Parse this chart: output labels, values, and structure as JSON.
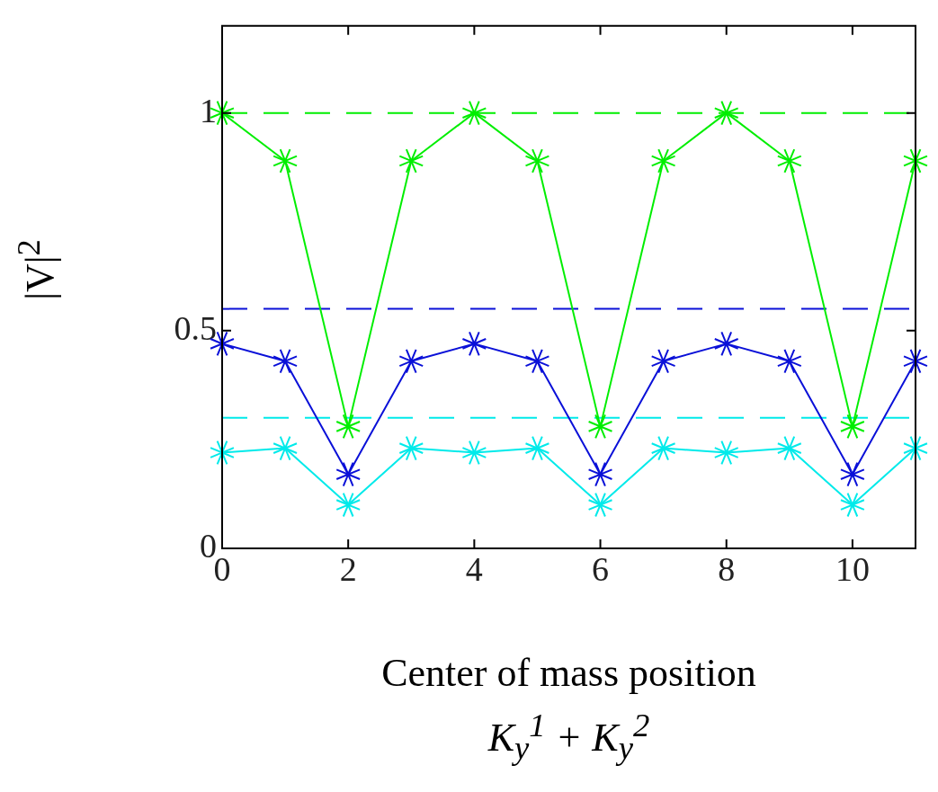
{
  "chart_data": {
    "type": "line",
    "xlabel": "Center of mass position\nK$_{y}$$^{1}$ + K$_{y}$$^{2}$",
    "ylabel": "|V|$^{2}$",
    "x": [
      0,
      1,
      2,
      3,
      4,
      5,
      6,
      7,
      8,
      9,
      10,
      11
    ],
    "series": [
      {
        "color": "#00ee00",
        "values": [
          1,
          0.89,
          0.28,
          0.89,
          1,
          0.89,
          0.28,
          0.89,
          1,
          0.89,
          0.28,
          0.89
        ]
      },
      {
        "color": "#0a10d8",
        "values": [
          0.47,
          0.43,
          0.17,
          0.43,
          0.47,
          0.43,
          0.17,
          0.43,
          0.47,
          0.43,
          0.17,
          0.43
        ]
      },
      {
        "color": "#00eaea",
        "values": [
          0.22,
          0.23,
          0.1,
          0.23,
          0.22,
          0.23,
          0.1,
          0.23,
          0.22,
          0.23,
          0.1,
          0.23
        ]
      }
    ],
    "ref_lines": [
      {
        "axis": "y",
        "value": 1,
        "color": "#00ee00",
        "line_style": "dashed"
      },
      {
        "axis": "y",
        "value": 0.55,
        "color": "#0a10d8",
        "line_style": "dashed"
      },
      {
        "axis": "y",
        "value": 0.3,
        "color": "#00eaea",
        "line_style": "dashed"
      }
    ],
    "xlim": [
      0,
      11
    ],
    "xticks": [
      0,
      2,
      4,
      6,
      8,
      10
    ],
    "ylim": [
      0,
      1.2
    ],
    "yticks": [
      0,
      0.5,
      1
    ],
    "grid": false,
    "legend": false,
    "marker": "cross",
    "line_style": "solid"
  }
}
